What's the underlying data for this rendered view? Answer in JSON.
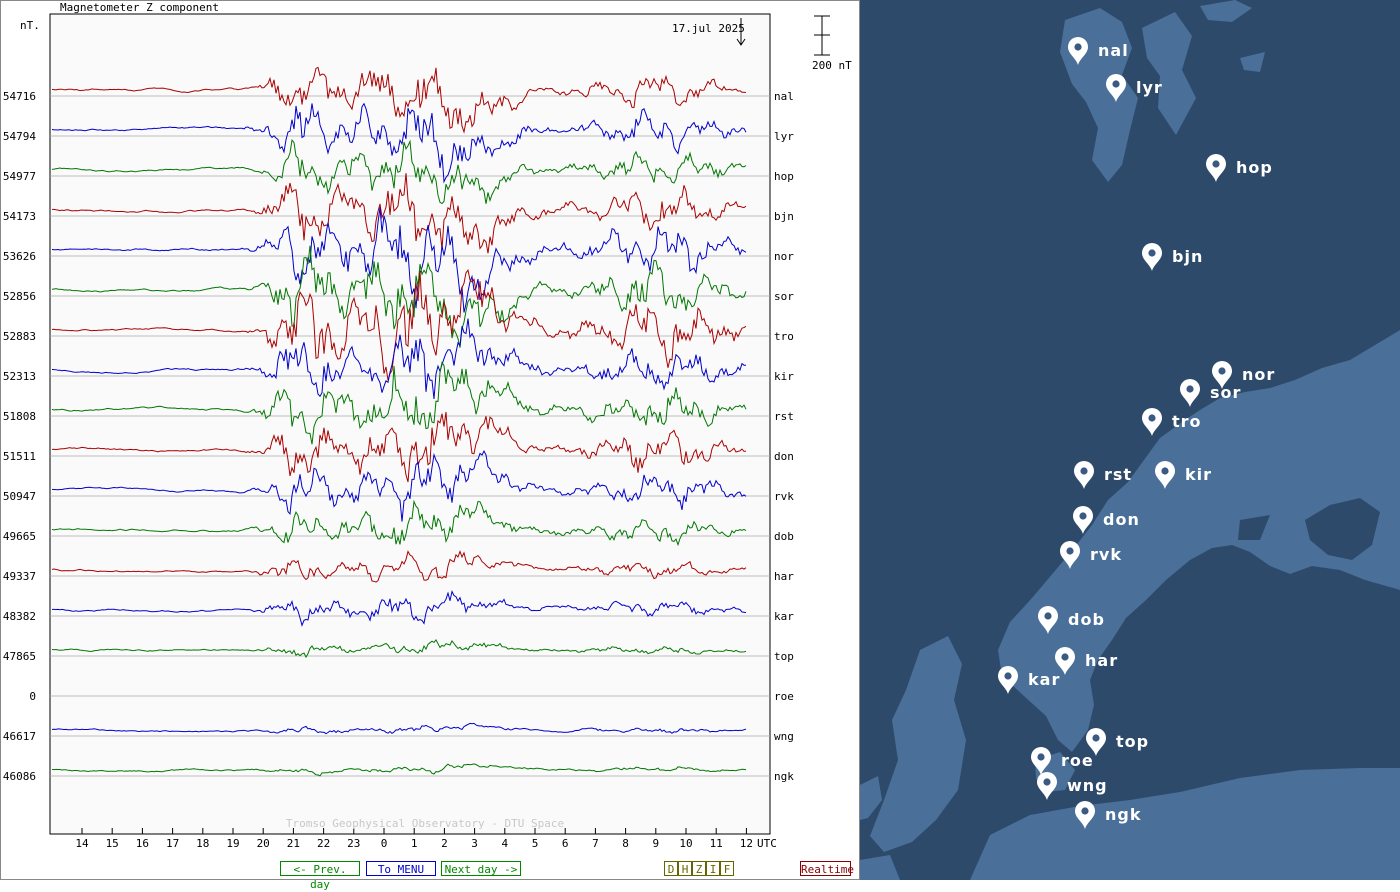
{
  "chart": {
    "title": "Magnetometer Z component",
    "unit": "nT.",
    "date": "17.jul 2025",
    "scale_label": "200 nT",
    "watermark": "Tromso Geophysical Observatory - DTU Space",
    "utc_label": "UTC"
  },
  "chart_data": {
    "type": "line",
    "x_ticks": [
      "14",
      "15",
      "16",
      "17",
      "18",
      "19",
      "20",
      "21",
      "22",
      "23",
      "0",
      "1",
      "2",
      "3",
      "4",
      "5",
      "6",
      "7",
      "8",
      "9",
      "10",
      "11",
      "12"
    ],
    "xlabel": "UTC",
    "stations": [
      {
        "code": "nal",
        "baseline": "54716",
        "color": "#aa0000",
        "amp": 0.9,
        "t0": 0.13
      },
      {
        "code": "lyr",
        "baseline": "54794",
        "color": "#0000cc",
        "amp": 0.9,
        "t0": 0.29
      },
      {
        "code": "hop",
        "baseline": "54977",
        "color": "#007700",
        "amp": 0.8,
        "t0": 0.47
      },
      {
        "code": "bjn",
        "baseline": "54173",
        "color": "#aa0000",
        "amp": 1.0,
        "t0": 0.61
      },
      {
        "code": "nor",
        "baseline": "53626",
        "color": "#0000cc",
        "amp": 1.2,
        "t0": 0.83
      },
      {
        "code": "sor",
        "baseline": "52856",
        "color": "#007700",
        "amp": 1.2,
        "t0": 1.07
      },
      {
        "code": "tro",
        "baseline": "52883",
        "color": "#aa0000",
        "amp": 1.4,
        "t0": 1.23
      },
      {
        "code": "kir",
        "baseline": "52313",
        "color": "#0000cc",
        "amp": 1.0,
        "t0": 1.41
      },
      {
        "code": "rst",
        "baseline": "51808",
        "color": "#007700",
        "amp": 1.0,
        "t0": 1.59
      },
      {
        "code": "don",
        "baseline": "51511",
        "color": "#aa0000",
        "amp": 0.9,
        "t0": 1.73
      },
      {
        "code": "rvk",
        "baseline": "50947",
        "color": "#0000cc",
        "amp": 0.8,
        "t0": 1.97
      },
      {
        "code": "dob",
        "baseline": "49665",
        "color": "#007700",
        "amp": 0.6,
        "t0": 2.11
      },
      {
        "code": "har",
        "baseline": "49337",
        "color": "#aa0000",
        "amp": 0.4,
        "t0": 2.31
      },
      {
        "code": "kar",
        "baseline": "48382",
        "color": "#0000cc",
        "amp": 0.4,
        "t0": 2.53
      },
      {
        "code": "top",
        "baseline": "47865",
        "color": "#007700",
        "amp": 0.2,
        "t0": 2.67
      },
      {
        "code": "roe",
        "baseline": "0",
        "color": "#000000",
        "amp": 0,
        "t0": 2.89
      },
      {
        "code": "wng",
        "baseline": "46617",
        "color": "#0000cc",
        "amp": 0.1,
        "t0": 3.03
      },
      {
        "code": "ngk",
        "baseline": "46086",
        "color": "#007700",
        "amp": 0.1,
        "t0": 3.19
      }
    ]
  },
  "nav": {
    "prev": "<- Prev. day",
    "menu": "To MENU",
    "next": "Next day ->",
    "components": [
      "D",
      "H",
      "Z",
      "I",
      "F"
    ],
    "realtime": "Realtime"
  },
  "map": {
    "water_color": "#2e4a6a",
    "land_color": "#4a6f99",
    "pins": [
      {
        "label": "nal"
      },
      {
        "label": "lyr"
      },
      {
        "label": "hop"
      },
      {
        "label": "bjn"
      },
      {
        "label": "nor"
      },
      {
        "label": "sor"
      },
      {
        "label": "tro"
      },
      {
        "label": "rst"
      },
      {
        "label": "kir"
      },
      {
        "label": "don"
      },
      {
        "label": "rvk"
      },
      {
        "label": "dob"
      },
      {
        "label": "har"
      },
      {
        "label": "kar"
      },
      {
        "label": "top"
      },
      {
        "label": "roe"
      },
      {
        "label": "wng"
      },
      {
        "label": "ngk"
      }
    ]
  }
}
